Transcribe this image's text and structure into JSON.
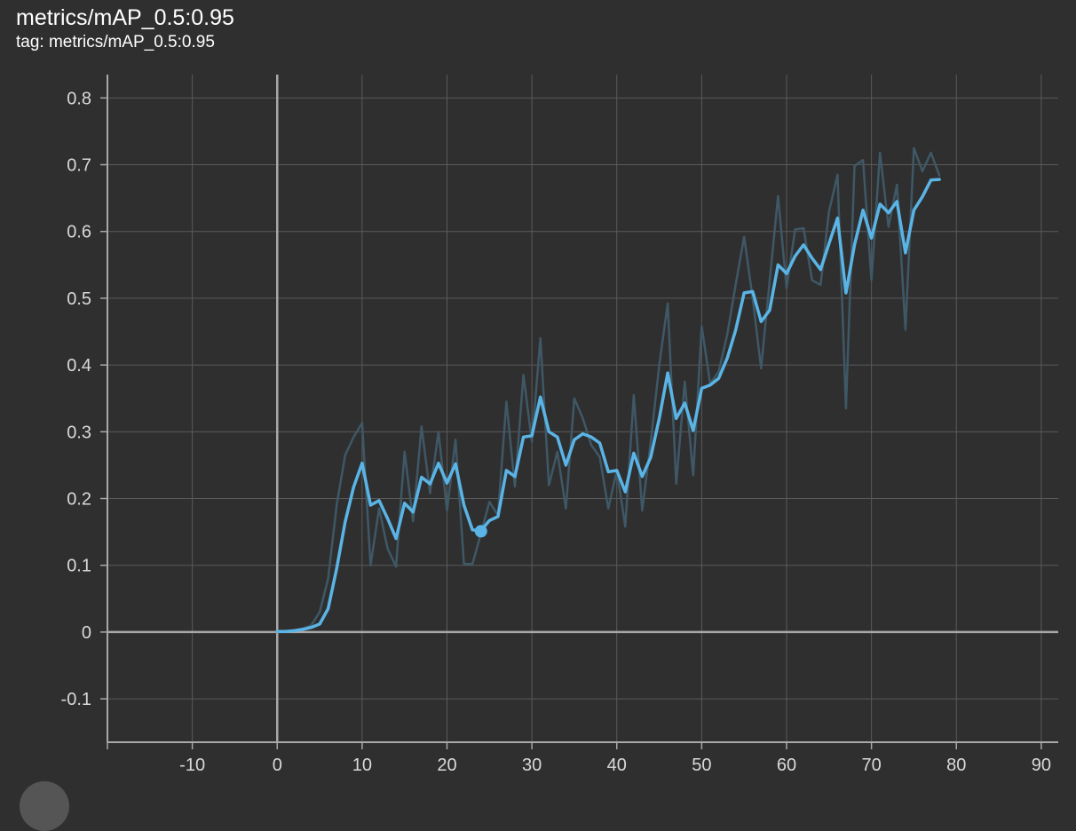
{
  "card": {
    "title": "metrics/mAP_0.5:0.95",
    "tag": "tag: metrics/mAP_0.5:0.95"
  },
  "chart_data": {
    "type": "line",
    "title": "metrics/mAP_0.5:0.95",
    "xlabel": "",
    "ylabel": "",
    "xlim": [
      -20,
      92
    ],
    "ylim": [
      -0.165,
      0.835
    ],
    "x_ticks": [
      -10,
      0,
      10,
      20,
      30,
      40,
      50,
      60,
      70,
      80,
      90
    ],
    "y_ticks": [
      -0.1,
      0,
      0.1,
      0.2,
      0.3,
      0.4,
      0.5,
      0.6,
      0.7,
      0.8
    ],
    "grid": true,
    "colors": {
      "background": "#2f2f2f",
      "smoothed": "#5ab4e6",
      "raw": "#3f5866",
      "grid": "#5a5a5a",
      "axis": "#a8a8a8"
    },
    "series": [
      {
        "role": "raw",
        "x": [
          0,
          1,
          2,
          3,
          4,
          5,
          6,
          7,
          8,
          9,
          10,
          11,
          12,
          13,
          14,
          15,
          16,
          17,
          18,
          19,
          20,
          21,
          22,
          23,
          24,
          25,
          26,
          27,
          28,
          29,
          30,
          31,
          32,
          33,
          34,
          35,
          36,
          37,
          38,
          39,
          40,
          41,
          42,
          43,
          44,
          45,
          46,
          47,
          48,
          49,
          50,
          51,
          52,
          53,
          54,
          55,
          56,
          57,
          58,
          59,
          60,
          61,
          62,
          63,
          64,
          65,
          66,
          67,
          68,
          69,
          70,
          71,
          72,
          73,
          74,
          75,
          76,
          77,
          78
        ],
        "y": [
          0.0,
          0.001,
          0.002,
          0.005,
          0.01,
          0.03,
          0.08,
          0.19,
          0.265,
          0.292,
          0.313,
          0.1,
          0.185,
          0.125,
          0.098,
          0.27,
          0.166,
          0.308,
          0.208,
          0.3,
          0.182,
          0.288,
          0.102,
          0.102,
          0.148,
          0.195,
          0.175,
          0.345,
          0.218,
          0.385,
          0.285,
          0.44,
          0.22,
          0.27,
          0.185,
          0.35,
          0.32,
          0.28,
          0.262,
          0.185,
          0.242,
          0.158,
          0.355,
          0.182,
          0.285,
          0.4,
          0.492,
          0.222,
          0.375,
          0.235,
          0.458,
          0.372,
          0.39,
          0.445,
          0.52,
          0.592,
          0.5,
          0.395,
          0.525,
          0.653,
          0.515,
          0.603,
          0.605,
          0.527,
          0.52,
          0.63,
          0.685,
          0.335,
          0.698,
          0.707,
          0.527,
          0.718,
          0.607,
          0.67,
          0.453,
          0.725,
          0.69,
          0.718,
          0.684
        ]
      },
      {
        "role": "smoothed",
        "x": [
          0,
          1,
          2,
          3,
          4,
          5,
          6,
          7,
          8,
          9,
          10,
          11,
          12,
          13,
          14,
          15,
          16,
          17,
          18,
          19,
          20,
          21,
          22,
          23,
          24,
          25,
          26,
          27,
          28,
          29,
          30,
          31,
          32,
          33,
          34,
          35,
          36,
          37,
          38,
          39,
          40,
          41,
          42,
          43,
          44,
          45,
          46,
          47,
          48,
          49,
          50,
          51,
          52,
          53,
          54,
          55,
          56,
          57,
          58,
          59,
          60,
          61,
          62,
          63,
          64,
          65,
          66,
          67,
          68,
          69,
          70,
          71,
          72,
          73,
          74,
          75,
          76,
          77,
          78
        ],
        "y": [
          0.001,
          0.001,
          0.002,
          0.004,
          0.007,
          0.012,
          0.035,
          0.095,
          0.165,
          0.217,
          0.253,
          0.19,
          0.197,
          0.17,
          0.14,
          0.193,
          0.18,
          0.232,
          0.222,
          0.253,
          0.223,
          0.252,
          0.19,
          0.153,
          0.152,
          0.167,
          0.173,
          0.242,
          0.233,
          0.292,
          0.294,
          0.352,
          0.3,
          0.292,
          0.25,
          0.288,
          0.297,
          0.292,
          0.283,
          0.24,
          0.242,
          0.21,
          0.268,
          0.233,
          0.262,
          0.32,
          0.388,
          0.32,
          0.343,
          0.302,
          0.365,
          0.37,
          0.38,
          0.41,
          0.452,
          0.508,
          0.51,
          0.465,
          0.482,
          0.55,
          0.537,
          0.563,
          0.58,
          0.56,
          0.543,
          0.582,
          0.62,
          0.508,
          0.58,
          0.632,
          0.59,
          0.641,
          0.628,
          0.645,
          0.568,
          0.632,
          0.652,
          0.677,
          0.678
        ]
      }
    ],
    "highlight_point": {
      "x": 24,
      "y": 0.151
    }
  }
}
